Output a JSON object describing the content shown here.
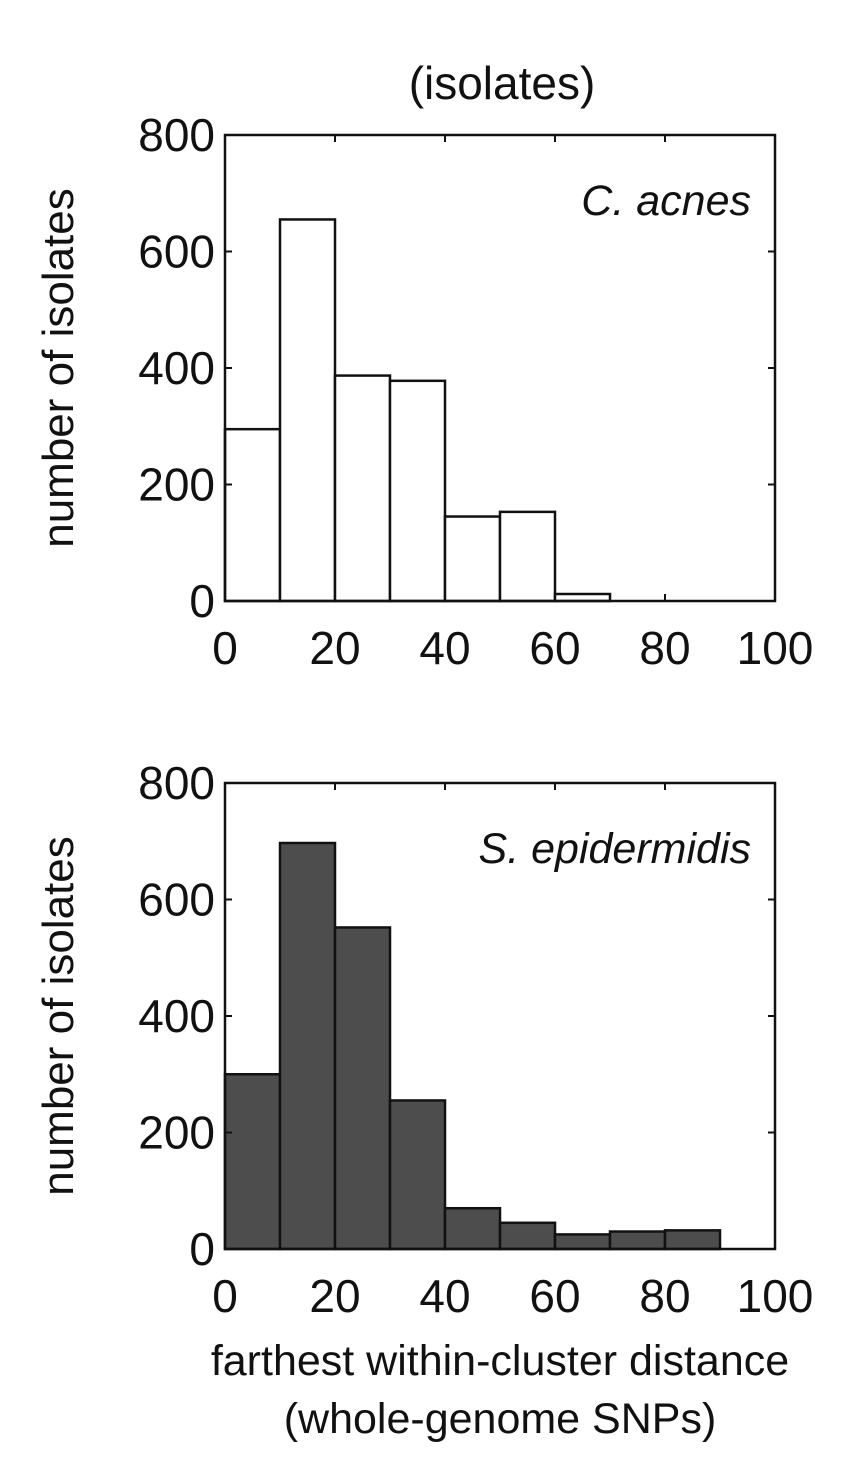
{
  "figure_title": "(isolates)",
  "colors": {
    "acnes_fill": "#ffffff",
    "epidermidis_fill": "#4d4d4d",
    "edge": "#111111"
  },
  "chart_data": [
    {
      "type": "bar",
      "subtype": "histogram",
      "label": "C. acnes",
      "ylabel": "number of isolates",
      "xlabel": "",
      "bin_edges": [
        0,
        10,
        20,
        30,
        40,
        50,
        60,
        70,
        80,
        90,
        100
      ],
      "values": [
        295,
        655,
        387,
        378,
        145,
        153,
        12,
        0,
        0,
        0
      ],
      "xlim": [
        0,
        100
      ],
      "ylim": [
        0,
        800
      ],
      "xticks": [
        0,
        20,
        40,
        60,
        80,
        100
      ],
      "yticks": [
        0,
        200,
        400,
        600,
        800
      ],
      "xtick_labels": [
        "0",
        "20",
        "40",
        "60",
        "80",
        "100"
      ],
      "ytick_labels": [
        "0",
        "200",
        "400",
        "600",
        "800"
      ],
      "fill": "#ffffff",
      "label_position": "top-right"
    },
    {
      "type": "bar",
      "subtype": "histogram",
      "label": "S. epidermidis",
      "ylabel": "number of isolates",
      "xlabel": [
        "farthest within-cluster distance",
        "(whole-genome SNPs)"
      ],
      "bin_edges": [
        0,
        10,
        20,
        30,
        40,
        50,
        60,
        70,
        80,
        90,
        100
      ],
      "values": [
        300,
        697,
        552,
        255,
        70,
        45,
        25,
        30,
        32,
        0
      ],
      "xlim": [
        0,
        100
      ],
      "ylim": [
        0,
        800
      ],
      "xticks": [
        0,
        20,
        40,
        60,
        80,
        100
      ],
      "yticks": [
        0,
        200,
        400,
        600,
        800
      ],
      "xtick_labels": [
        "0",
        "20",
        "40",
        "60",
        "80",
        "100"
      ],
      "ytick_labels": [
        "0",
        "200",
        "400",
        "600",
        "800"
      ],
      "fill": "#4d4d4d",
      "label_position": "top-right"
    }
  ]
}
